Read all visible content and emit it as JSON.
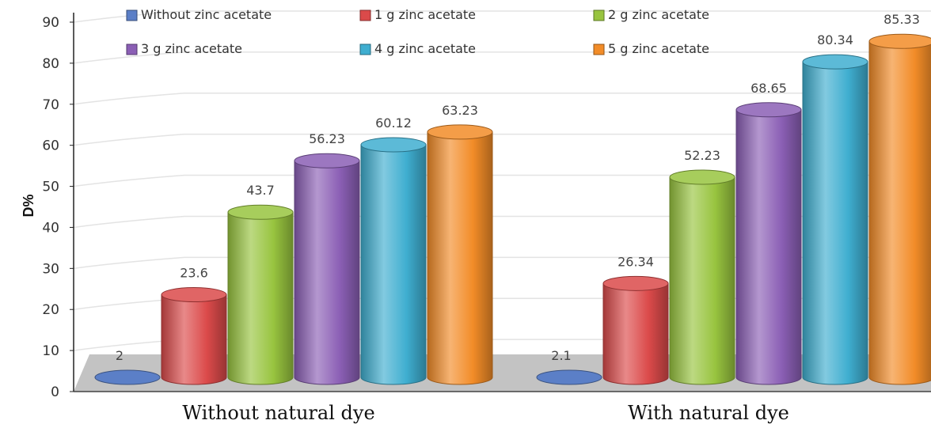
{
  "chart_data": {
    "type": "bar",
    "title": "",
    "xlabel": "",
    "ylabel": "D%",
    "ylim": [
      0,
      90
    ],
    "yticks": [
      0,
      10,
      20,
      30,
      40,
      50,
      60,
      70,
      80,
      90
    ],
    "grid": true,
    "legend_position": "top",
    "categories": [
      "Without natural dye",
      "With natural dye"
    ],
    "series": [
      {
        "name": "Without zinc acetate",
        "values": [
          2,
          2.1
        ],
        "labels": [
          "2",
          "2.1"
        ],
        "color": "#5B7FC7"
      },
      {
        "name": "1 g zinc acetate",
        "values": [
          23.6,
          26.34
        ],
        "labels": [
          "23.6",
          "26.34"
        ],
        "color": "#DB4A4A"
      },
      {
        "name": "2 g zinc acetate",
        "values": [
          43.7,
          52.23
        ],
        "labels": [
          "43.7",
          "52.23"
        ],
        "color": "#98C43F"
      },
      {
        "name": "3 g zinc acetate",
        "values": [
          56.23,
          68.65
        ],
        "labels": [
          "56.23",
          "68.65"
        ],
        "color": "#8B5FB5"
      },
      {
        "name": "4 g zinc acetate",
        "values": [
          60.12,
          80.34
        ],
        "labels": [
          "60.12",
          "80.34"
        ],
        "color": "#3FAED0"
      },
      {
        "name": "5 g zinc acetate",
        "values": [
          63.23,
          85.33
        ],
        "labels": [
          "63.23",
          "85.33"
        ],
        "color": "#F28C28"
      }
    ]
  }
}
